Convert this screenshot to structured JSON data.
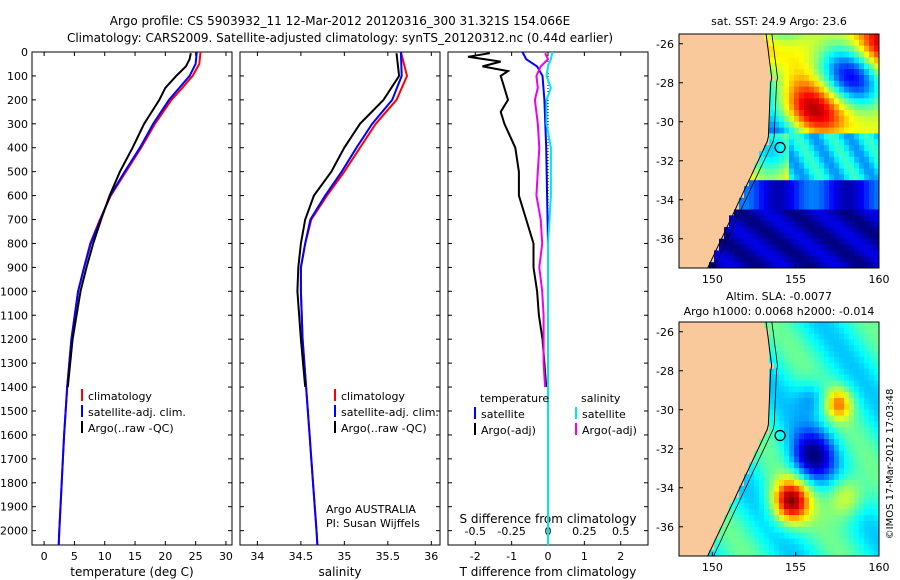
{
  "header": {
    "line1": "Argo profile: CS 5903932_11 12-Mar-2012 20120316_300 31.321S 154.066E",
    "line2": "Climatology: CARS2009. Satellite-adjusted climatology: synTS_20120312.nc (0.44d earlier)"
  },
  "colors": {
    "climatology": "#ff0000",
    "satellite": "#0000ff",
    "argo": "#000000",
    "satellite_s": "#00e5ee",
    "argo_s": "#ee00ee",
    "land": "#f9c89b"
  },
  "chart_data": [
    {
      "id": "temperature",
      "type": "line",
      "xlabel": "temperature (deg C)",
      "ylabel": "",
      "xlim": [
        -2,
        31
      ],
      "ylim": [
        2060,
        0
      ],
      "xticks": [
        0,
        5,
        10,
        15,
        20,
        25,
        30
      ],
      "yticks": [
        0,
        100,
        200,
        300,
        400,
        500,
        600,
        700,
        800,
        900,
        1000,
        1100,
        1200,
        1300,
        1400,
        1500,
        1600,
        1700,
        1800,
        1900,
        2000
      ],
      "legend": [
        "climatology",
        "satellite-adj. clim.",
        "Argo(..raw -QC)"
      ],
      "series": [
        {
          "name": "climatology",
          "depth": [
            0,
            50,
            100,
            150,
            200,
            300,
            400,
            500,
            600,
            700,
            800,
            900,
            1000,
            1200,
            1400,
            1600,
            1800,
            2000,
            2060
          ],
          "values": [
            25.8,
            25.6,
            24.5,
            22.8,
            21.0,
            18.3,
            16.0,
            13.5,
            11.0,
            9.2,
            7.6,
            6.6,
            5.6,
            4.5,
            3.8,
            3.3,
            2.9,
            2.5,
            2.4
          ]
        },
        {
          "name": "satellite-adj. clim.",
          "depth": [
            0,
            50,
            100,
            150,
            200,
            300,
            400,
            500,
            600,
            700,
            800,
            900,
            1000,
            1200,
            1400,
            1600,
            1800,
            2000,
            2060
          ],
          "values": [
            25.2,
            25.0,
            24.0,
            22.3,
            20.6,
            18.0,
            15.8,
            13.3,
            10.9,
            9.3,
            7.7,
            6.6,
            5.6,
            4.5,
            3.8,
            3.3,
            2.9,
            2.5,
            2.4
          ]
        },
        {
          "name": "Argo(..raw -QC)",
          "depth": [
            5,
            30,
            60,
            80,
            100,
            150,
            200,
            300,
            400,
            500,
            600,
            700,
            800,
            900,
            1000,
            1200,
            1400
          ],
          "values": [
            24.2,
            24.0,
            23.4,
            22.6,
            21.8,
            20.0,
            19.0,
            16.5,
            14.6,
            12.5,
            10.8,
            9.4,
            8.1,
            7.0,
            6.0,
            4.7,
            3.9
          ]
        }
      ]
    },
    {
      "id": "salinity",
      "type": "line",
      "xlabel": "salinity",
      "ylabel": "",
      "xlim": [
        33.8,
        36.1
      ],
      "ylim": [
        2060,
        0
      ],
      "xticks": [
        34,
        34.5,
        35,
        35.5,
        36
      ],
      "xticklabels": [
        "34",
        "34.5",
        "35",
        "35.5",
        "36"
      ],
      "legend": [
        "climatology",
        "satellite-adj. clim.",
        "Argo(..raw -QC)"
      ],
      "annotation": [
        "Argo AUSTRALIA",
        "PI: Susan Wijffels"
      ],
      "series": [
        {
          "name": "climatology",
          "depth": [
            0,
            100,
            200,
            300,
            400,
            500,
            600,
            700,
            800,
            900,
            1000,
            1200,
            1400,
            1600,
            1800,
            2000,
            2060
          ],
          "values": [
            35.65,
            35.72,
            35.6,
            35.36,
            35.18,
            35.0,
            34.8,
            34.62,
            34.55,
            34.5,
            34.5,
            34.52,
            34.56,
            34.6,
            34.64,
            34.68,
            34.69
          ]
        },
        {
          "name": "satellite-adj. clim.",
          "depth": [
            0,
            100,
            200,
            300,
            400,
            500,
            600,
            700,
            800,
            900,
            1000,
            1200,
            1400,
            1600,
            1800,
            2000,
            2060
          ],
          "values": [
            35.65,
            35.66,
            35.55,
            35.32,
            35.14,
            34.97,
            34.78,
            34.61,
            34.55,
            34.5,
            34.5,
            34.52,
            34.56,
            34.6,
            34.64,
            34.68,
            34.69
          ]
        },
        {
          "name": "Argo(..raw -QC)",
          "depth": [
            5,
            100,
            200,
            300,
            400,
            500,
            600,
            700,
            800,
            900,
            1000,
            1200,
            1400
          ],
          "values": [
            35.6,
            35.63,
            35.45,
            35.18,
            35.0,
            34.85,
            34.65,
            34.55,
            34.5,
            34.47,
            34.46,
            34.5,
            34.55
          ]
        }
      ]
    },
    {
      "id": "difference",
      "type": "line",
      "xlabel": "T difference from climatology",
      "xlabel_top": "S difference from climatology",
      "xlim": [
        -2.75,
        2.75
      ],
      "ylim": [
        2060,
        0
      ],
      "xticks": [
        -2,
        -1,
        0,
        1,
        2
      ],
      "xticks_s": [
        -0.5,
        -0.25,
        0,
        0.25,
        0.5
      ],
      "legend": {
        "temperature": [
          "satellite",
          "Argo(-adj)"
        ],
        "salinity": [
          "satellite",
          "Argo(-adj)"
        ],
        "temperature_header": "temperature",
        "salinity_header": "salinity"
      },
      "series": [
        {
          "name": "T satellite",
          "depth": [
            0,
            30,
            60,
            100,
            200,
            400,
            800,
            1200,
            2060
          ],
          "values": [
            -0.7,
            -0.6,
            -0.3,
            -0.15,
            -0.1,
            -0.05,
            0,
            0,
            0
          ]
        },
        {
          "name": "T Argo(-adj)",
          "depth": [
            5,
            20,
            40,
            60,
            80,
            100,
            150,
            200,
            250,
            300,
            400,
            500,
            600,
            700,
            800,
            900,
            1000,
            1100,
            1200,
            1300,
            1400
          ],
          "values": [
            -1.6,
            -2.2,
            -1.3,
            -1.8,
            -1.1,
            -1.3,
            -1.2,
            -1.1,
            -1.3,
            -1.2,
            -0.9,
            -0.8,
            -0.8,
            -0.6,
            -0.4,
            -0.4,
            -0.3,
            -0.25,
            -0.15,
            -0.1,
            -0.05
          ]
        },
        {
          "name": "S satellite",
          "depth": [
            0,
            30,
            60,
            100,
            150,
            200,
            300,
            400,
            600,
            800,
            1000,
            1400,
            2060
          ],
          "values": [
            0.03,
            0.02,
            0.0,
            -0.01,
            0.02,
            -0.01,
            -0.01,
            0.02,
            0.02,
            0.0,
            0.0,
            0.0,
            0.0
          ]
        },
        {
          "name": "S Argo(-adj)",
          "depth": [
            5,
            30,
            60,
            100,
            150,
            200,
            300,
            400,
            500,
            600,
            700,
            800,
            900,
            1000,
            1100,
            1200,
            1300,
            1400
          ],
          "values": [
            -0.02,
            0.0,
            -0.05,
            -0.08,
            -0.07,
            -0.09,
            -0.07,
            -0.06,
            -0.07,
            -0.08,
            -0.05,
            -0.04,
            -0.06,
            -0.04,
            -0.03,
            -0.03,
            -0.03,
            -0.02
          ]
        }
      ]
    },
    {
      "id": "sst_map",
      "type": "heatmap",
      "title": "sat. SST: 24.9  Argo: 23.6",
      "xlim": [
        148,
        160
      ],
      "ylim": [
        -37.5,
        -25.5
      ],
      "xticks": [
        150,
        155,
        160
      ],
      "yticks": [
        -26,
        -28,
        -30,
        -32,
        -34,
        -36
      ],
      "float_position": {
        "lon": 154.066,
        "lat": -31.321
      }
    },
    {
      "id": "sla_map",
      "type": "heatmap",
      "title": "Altim. SLA: -0.0077",
      "subtitle": "Argo h1000: 0.0068  h2000: -0.014",
      "xlim": [
        148,
        160
      ],
      "ylim": [
        -37.5,
        -25.5
      ],
      "xticks": [
        150,
        155,
        160
      ],
      "yticks": [
        -26,
        -28,
        -30,
        -32,
        -34,
        -36
      ],
      "float_position": {
        "lon": 154.066,
        "lat": -31.321
      },
      "stamp": "©IMOS 17-Mar-2012 17:03:48"
    }
  ]
}
